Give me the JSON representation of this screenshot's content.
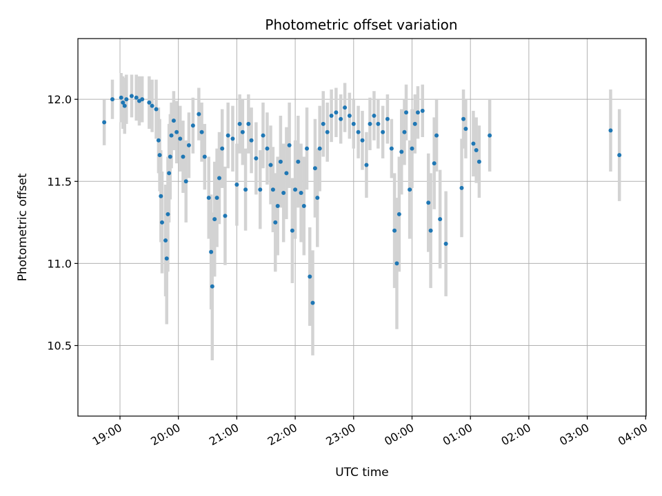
{
  "chart_data": {
    "type": "scatter",
    "title": "Photometric offset variation",
    "xlabel": "UTC time",
    "ylabel": "Photometric offset",
    "x_ticks": [
      "19:00",
      "20:00",
      "21:00",
      "22:00",
      "23:00",
      "00:00",
      "01:00",
      "02:00",
      "03:00",
      "04:00"
    ],
    "y_ticks": [
      "10.5",
      "11.0",
      "11.5",
      "12.0"
    ],
    "xlim": [
      "18:17",
      "04:00"
    ],
    "ylim": [
      10.07,
      12.37
    ],
    "grid": true,
    "colors": {
      "points": "#1f77b4",
      "errorbars": "#d3d3d3",
      "grid": "#b0b0b0"
    },
    "x_unit": "hours since 19:00 UTC",
    "series": [
      {
        "marker": "point with vertical error bar",
        "points": [
          [
            -0.27,
            11.86,
            0.14
          ],
          [
            -0.13,
            12.0,
            0.12
          ],
          [
            0.02,
            12.01,
            0.15
          ],
          [
            0.05,
            11.98,
            0.16
          ],
          [
            0.08,
            11.96,
            0.17
          ],
          [
            0.11,
            12.0,
            0.15
          ],
          [
            0.2,
            12.02,
            0.13
          ],
          [
            0.28,
            12.01,
            0.14
          ],
          [
            0.33,
            11.99,
            0.15
          ],
          [
            0.38,
            12.0,
            0.14
          ],
          [
            0.5,
            11.98,
            0.16
          ],
          [
            0.55,
            11.96,
            0.16
          ],
          [
            0.62,
            11.94,
            0.18
          ],
          [
            0.66,
            11.75,
            0.2
          ],
          [
            0.68,
            11.66,
            0.22
          ],
          [
            0.7,
            11.41,
            0.28
          ],
          [
            0.72,
            11.25,
            0.31
          ],
          [
            0.78,
            11.14,
            0.34
          ],
          [
            0.8,
            11.03,
            0.4
          ],
          [
            0.82,
            11.3,
            0.35
          ],
          [
            0.84,
            11.55,
            0.3
          ],
          [
            0.86,
            11.65,
            0.26
          ],
          [
            0.88,
            11.78,
            0.2
          ],
          [
            0.92,
            11.87,
            0.18
          ],
          [
            0.97,
            11.8,
            0.19
          ],
          [
            1.03,
            11.76,
            0.2
          ],
          [
            1.08,
            11.65,
            0.22
          ],
          [
            1.13,
            11.5,
            0.25
          ],
          [
            1.18,
            11.72,
            0.2
          ],
          [
            1.25,
            11.84,
            0.17
          ],
          [
            1.35,
            11.91,
            0.16
          ],
          [
            1.4,
            11.8,
            0.18
          ],
          [
            1.45,
            11.65,
            0.2
          ],
          [
            1.52,
            11.4,
            0.25
          ],
          [
            1.56,
            11.07,
            0.35
          ],
          [
            1.58,
            10.86,
            0.45
          ],
          [
            1.62,
            11.27,
            0.35
          ],
          [
            1.66,
            11.4,
            0.3
          ],
          [
            1.7,
            11.52,
            0.28
          ],
          [
            1.75,
            11.7,
            0.24
          ],
          [
            1.8,
            11.29,
            0.3
          ],
          [
            1.85,
            11.78,
            0.2
          ],
          [
            1.93,
            11.76,
            0.2
          ],
          [
            2.0,
            11.48,
            0.25
          ],
          [
            2.05,
            11.85,
            0.18
          ],
          [
            2.1,
            11.8,
            0.2
          ],
          [
            2.15,
            11.45,
            0.25
          ],
          [
            2.2,
            11.85,
            0.18
          ],
          [
            2.25,
            11.75,
            0.2
          ],
          [
            2.33,
            11.64,
            0.22
          ],
          [
            2.4,
            11.45,
            0.24
          ],
          [
            2.45,
            11.78,
            0.2
          ],
          [
            2.52,
            11.7,
            0.22
          ],
          [
            2.58,
            11.6,
            0.24
          ],
          [
            2.62,
            11.45,
            0.26
          ],
          [
            2.66,
            11.25,
            0.3
          ],
          [
            2.7,
            11.35,
            0.3
          ],
          [
            2.75,
            11.62,
            0.28
          ],
          [
            2.8,
            11.43,
            0.3
          ],
          [
            2.85,
            11.55,
            0.28
          ],
          [
            2.9,
            11.72,
            0.26
          ],
          [
            2.95,
            11.2,
            0.32
          ],
          [
            3.0,
            11.45,
            0.3
          ],
          [
            3.05,
            11.62,
            0.28
          ],
          [
            3.1,
            11.43,
            0.3
          ],
          [
            3.15,
            11.35,
            0.3
          ],
          [
            3.2,
            11.7,
            0.25
          ],
          [
            3.25,
            10.92,
            0.3
          ],
          [
            3.3,
            10.76,
            0.32
          ],
          [
            3.34,
            11.58,
            0.3
          ],
          [
            3.38,
            11.4,
            0.3
          ],
          [
            3.42,
            11.7,
            0.26
          ],
          [
            3.48,
            11.85,
            0.2
          ],
          [
            3.55,
            11.8,
            0.18
          ],
          [
            3.62,
            11.9,
            0.16
          ],
          [
            3.7,
            11.92,
            0.15
          ],
          [
            3.78,
            11.88,
            0.15
          ],
          [
            3.85,
            11.95,
            0.15
          ],
          [
            3.93,
            11.9,
            0.14
          ],
          [
            4.0,
            11.85,
            0.15
          ],
          [
            4.08,
            11.8,
            0.16
          ],
          [
            4.15,
            11.75,
            0.18
          ],
          [
            4.22,
            11.6,
            0.2
          ],
          [
            4.28,
            11.85,
            0.16
          ],
          [
            4.35,
            11.9,
            0.15
          ],
          [
            4.42,
            11.85,
            0.15
          ],
          [
            4.5,
            11.8,
            0.16
          ],
          [
            4.58,
            11.88,
            0.15
          ],
          [
            4.65,
            11.7,
            0.18
          ],
          [
            4.7,
            11.2,
            0.35
          ],
          [
            4.74,
            11.0,
            0.4
          ],
          [
            4.78,
            11.3,
            0.35
          ],
          [
            4.82,
            11.68,
            0.26
          ],
          [
            4.87,
            11.8,
            0.2
          ],
          [
            4.9,
            11.92,
            0.17
          ],
          [
            4.96,
            11.45,
            0.3
          ],
          [
            5.0,
            11.7,
            0.24
          ],
          [
            5.05,
            11.85,
            0.18
          ],
          [
            5.1,
            11.92,
            0.16
          ],
          [
            5.18,
            11.93,
            0.16
          ],
          [
            5.28,
            11.37,
            0.3
          ],
          [
            5.32,
            11.2,
            0.35
          ],
          [
            5.38,
            11.61,
            0.28
          ],
          [
            5.42,
            11.78,
            0.22
          ],
          [
            5.48,
            11.27,
            0.3
          ],
          [
            5.58,
            11.12,
            0.32
          ],
          [
            5.85,
            11.46,
            0.3
          ],
          [
            5.88,
            11.88,
            0.18
          ],
          [
            5.92,
            11.82,
            0.18
          ],
          [
            6.05,
            11.73,
            0.2
          ],
          [
            6.1,
            11.69,
            0.2
          ],
          [
            6.15,
            11.62,
            0.22
          ],
          [
            6.33,
            11.78,
            0.22
          ],
          [
            8.4,
            11.81,
            0.25
          ],
          [
            8.55,
            11.66,
            0.28
          ]
        ]
      }
    ]
  }
}
